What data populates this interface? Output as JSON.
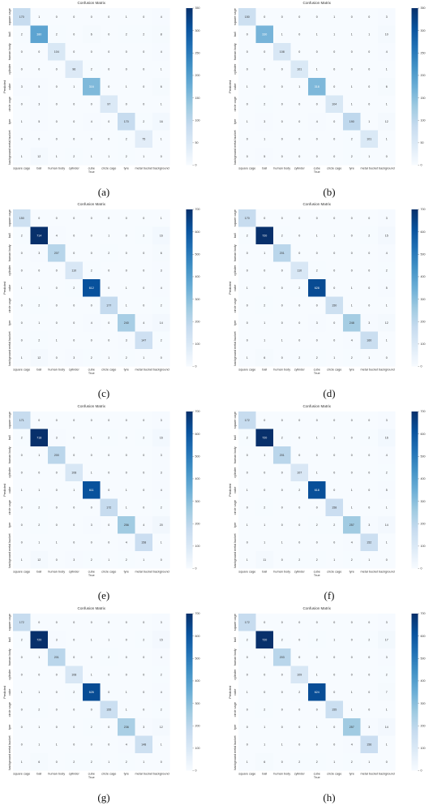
{
  "figure": {
    "class_labels": [
      "square cage",
      "ball",
      "human body",
      "cylinder",
      "cube",
      "circle cage",
      "tyre",
      "metal bucket",
      "background"
    ],
    "xlabel": "True",
    "ylabel": "Predicted",
    "colormap": [
      "#f7fbff",
      "#deebf7",
      "#c6dbef",
      "#9ecae1",
      "#6baed6",
      "#4292c6",
      "#2171b5",
      "#08519c",
      "#08306b"
    ]
  },
  "chart_data": [
    {
      "panel": "(a)",
      "type": "heatmap",
      "title": "Confusion Matrix",
      "xlabel": "True",
      "ylabel": "Predicted",
      "x": [
        "square cage",
        "ball",
        "human body",
        "cylinder",
        "cube",
        "circle cage",
        "tyre",
        "metal bucket",
        "background"
      ],
      "y": [
        "square cage",
        "ball",
        "human body",
        "cylinder",
        "cube",
        "circle cage",
        "tyre",
        "metal bucket",
        "background"
      ],
      "vmin": 0,
      "vmax": 700,
      "colorbar_ticks": [
        0,
        50,
        100,
        150,
        200,
        250,
        300,
        350
      ],
      "z": [
        [
          170,
          1,
          0,
          0,
          0,
          0,
          1,
          0,
          4
        ],
        [
          2,
          380,
          2,
          0,
          6,
          0,
          2,
          2,
          8
        ],
        [
          0,
          0,
          104,
          0,
          0,
          0,
          0,
          0,
          4
        ],
        [
          0,
          0,
          0,
          96,
          2,
          0,
          0,
          0,
          1
        ],
        [
          3,
          5,
          0,
          1,
          316,
          0,
          1,
          0,
          6
        ],
        [
          0,
          3,
          0,
          0,
          0,
          97,
          0,
          0,
          1
        ],
        [
          1,
          5,
          0,
          0,
          4,
          0,
          170,
          2,
          16
        ],
        [
          0,
          0,
          0,
          0,
          0,
          0,
          2,
          75,
          1
        ],
        [
          1,
          12,
          1,
          2,
          1,
          1,
          2,
          1,
          0
        ]
      ]
    },
    {
      "panel": "(b)",
      "type": "heatmap",
      "title": "Confusion Matrix",
      "xlabel": "True",
      "ylabel": "Predicted",
      "x": [
        "square cage",
        "ball",
        "human body",
        "cylinder",
        "cube",
        "circle cage",
        "tyre",
        "metal bucket",
        "background"
      ],
      "y": [
        "square cage",
        "ball",
        "human body",
        "cylinder",
        "cube",
        "circle cage",
        "tyre",
        "metal bucket",
        "background"
      ],
      "vmin": 0,
      "vmax": 700,
      "colorbar_ticks": [
        0,
        50,
        100,
        150,
        200,
        250,
        300,
        350
      ],
      "z": [
        [
          150,
          0,
          0,
          0,
          0,
          1,
          0,
          0,
          3
        ],
        [
          0,
          330,
          1,
          0,
          1,
          1,
          1,
          1,
          10
        ],
        [
          0,
          0,
          108,
          0,
          0,
          0,
          0,
          0,
          4
        ],
        [
          0,
          0,
          0,
          101,
          1,
          0,
          0,
          0,
          1
        ],
        [
          1,
          0,
          0,
          1,
          318,
          0,
          1,
          0,
          6
        ],
        [
          0,
          2,
          0,
          0,
          0,
          104,
          1,
          0,
          1
        ],
        [
          1,
          3,
          0,
          0,
          4,
          0,
          190,
          1,
          12
        ],
        [
          0,
          1,
          0,
          0,
          0,
          0,
          2,
          101,
          1
        ],
        [
          0,
          5,
          0,
          0,
          0,
          0,
          2,
          1,
          0
        ]
      ]
    },
    {
      "panel": "(c)",
      "type": "heatmap",
      "title": "Confusion Matrix",
      "xlabel": "True",
      "ylabel": "Predicted",
      "x": [
        "square cage",
        "ball",
        "human body",
        "cylinder",
        "cube",
        "circle cage",
        "tyre",
        "metal bucket",
        "background"
      ],
      "y": [
        "square cage",
        "ball",
        "human body",
        "cylinder",
        "cube",
        "circle cage",
        "tyre",
        "metal bucket",
        "background"
      ],
      "vmin": 0,
      "vmax": 700,
      "colorbar_ticks": [
        0,
        100,
        200,
        300,
        400,
        500,
        600,
        700
      ],
      "z": [
        [
          150,
          0,
          0,
          0,
          0,
          0,
          0,
          0,
          1
        ],
        [
          2,
          714,
          4,
          0,
          0,
          1,
          0,
          2,
          16
        ],
        [
          0,
          3,
          207,
          0,
          0,
          2,
          0,
          0,
          6
        ],
        [
          0,
          0,
          0,
          110,
          2,
          0,
          0,
          0,
          3
        ],
        [
          1,
          1,
          0,
          2,
          612,
          0,
          1,
          0,
          4
        ],
        [
          0,
          2,
          0,
          0,
          0,
          177,
          1,
          0,
          2
        ],
        [
          0,
          1,
          0,
          0,
          4,
          0,
          240,
          4,
          14
        ],
        [
          0,
          2,
          1,
          0,
          0,
          0,
          3,
          147,
          2
        ],
        [
          1,
          12,
          0,
          3,
          2,
          1,
          2,
          1,
          0
        ]
      ]
    },
    {
      "panel": "(d)",
      "type": "heatmap",
      "title": "Confusion Matrix",
      "xlabel": "True",
      "ylabel": "Predicted",
      "x": [
        "square cage",
        "ball",
        "human body",
        "cylinder",
        "cube",
        "circle cage",
        "tyre",
        "metal bucket",
        "background"
      ],
      "y": [
        "square cage",
        "ball",
        "human body",
        "cylinder",
        "cube",
        "circle cage",
        "tyre",
        "metal bucket",
        "background"
      ],
      "vmin": 0,
      "vmax": 700,
      "colorbar_ticks": [
        0,
        100,
        200,
        300,
        400,
        500,
        600,
        700
      ],
      "z": [
        [
          170,
          0,
          0,
          0,
          0,
          0,
          0,
          0,
          3
        ],
        [
          2,
          720,
          2,
          0,
          1,
          1,
          0,
          2,
          15
        ],
        [
          0,
          1,
          201,
          0,
          0,
          0,
          0,
          0,
          4
        ],
        [
          0,
          0,
          0,
          110,
          2,
          0,
          0,
          0,
          2
        ],
        [
          1,
          0,
          0,
          2,
          628,
          0,
          1,
          0,
          5
        ],
        [
          0,
          2,
          0,
          0,
          0,
          150,
          1,
          0,
          1
        ],
        [
          0,
          1,
          0,
          0,
          3,
          0,
          248,
          3,
          12
        ],
        [
          0,
          1,
          1,
          0,
          0,
          0,
          4,
          160,
          1
        ],
        [
          1,
          6,
          0,
          2,
          2,
          1,
          2,
          1,
          0
        ]
      ]
    },
    {
      "panel": "(e)",
      "type": "heatmap",
      "title": "Confusion Matrix",
      "xlabel": "True",
      "ylabel": "Predicted",
      "x": [
        "square cage",
        "ball",
        "human body",
        "cylinder",
        "cube",
        "circle cage",
        "tyre",
        "metal bucket",
        "background"
      ],
      "y": [
        "square cage",
        "ball",
        "human body",
        "cylinder",
        "cube",
        "circle cage",
        "tyre",
        "metal bucket",
        "background"
      ],
      "vmin": 0,
      "vmax": 700,
      "colorbar_ticks": [
        0,
        100,
        200,
        300,
        400,
        500,
        600,
        700
      ],
      "z": [
        [
          171,
          0,
          0,
          0,
          0,
          0,
          0,
          0,
          3
        ],
        [
          2,
          718,
          3,
          0,
          1,
          2,
          0,
          2,
          16
        ],
        [
          0,
          1,
          200,
          0,
          0,
          0,
          0,
          0,
          3
        ],
        [
          0,
          0,
          0,
          108,
          1,
          0,
          0,
          0,
          3
        ],
        [
          1,
          1,
          0,
          1,
          611,
          0,
          1,
          0,
          4
        ],
        [
          0,
          2,
          0,
          0,
          0,
          172,
          1,
          0,
          2
        ],
        [
          0,
          2,
          0,
          0,
          3,
          0,
          256,
          4,
          20
        ],
        [
          0,
          1,
          1,
          0,
          0,
          0,
          4,
          158,
          1
        ],
        [
          1,
          12,
          0,
          3,
          2,
          1,
          2,
          1,
          0
        ]
      ]
    },
    {
      "panel": "(f)",
      "type": "heatmap",
      "title": "Confusion Matrix",
      "xlabel": "True",
      "ylabel": "Predicted",
      "x": [
        "square cage",
        "ball",
        "human body",
        "cylinder",
        "cube",
        "circle cage",
        "tyre",
        "metal bucket",
        "background"
      ],
      "y": [
        "square cage",
        "ball",
        "human body",
        "cylinder",
        "cube",
        "circle cage",
        "tyre",
        "metal bucket",
        "background"
      ],
      "vmin": 0,
      "vmax": 700,
      "colorbar_ticks": [
        0,
        100,
        200,
        300,
        400,
        500,
        600,
        700
      ],
      "z": [
        [
          172,
          0,
          0,
          0,
          0,
          0,
          0,
          0,
          3
        ],
        [
          2,
          720,
          2,
          0,
          1,
          1,
          0,
          2,
          16
        ],
        [
          0,
          1,
          201,
          0,
          0,
          0,
          0,
          0,
          4
        ],
        [
          0,
          0,
          0,
          107,
          1,
          0,
          0,
          0,
          2
        ],
        [
          1,
          0,
          0,
          2,
          618,
          0,
          1,
          0,
          5
        ],
        [
          0,
          2,
          0,
          0,
          0,
          158,
          1,
          0,
          1
        ],
        [
          1,
          1,
          0,
          0,
          2,
          2,
          257,
          3,
          14
        ],
        [
          0,
          1,
          1,
          0,
          0,
          0,
          4,
          152,
          1
        ],
        [
          1,
          11,
          0,
          2,
          2,
          1,
          2,
          1,
          0
        ]
      ]
    },
    {
      "panel": "(g)",
      "type": "heatmap",
      "title": "Confusion Matrix",
      "xlabel": "True",
      "ylabel": "Predicted",
      "x": [
        "square cage",
        "ball",
        "human body",
        "cylinder",
        "cube",
        "circle cage",
        "tyre",
        "metal bucket",
        "background"
      ],
      "y": [
        "square cage",
        "ball",
        "human body",
        "cylinder",
        "cube",
        "circle cage",
        "tyre",
        "metal bucket",
        "background"
      ],
      "vmin": 0,
      "vmax": 700,
      "colorbar_ticks": [
        0,
        100,
        200,
        300,
        400,
        500,
        600,
        700
      ],
      "z": [
        [
          172,
          0,
          0,
          0,
          0,
          0,
          0,
          0,
          3
        ],
        [
          2,
          720,
          3,
          0,
          1,
          1,
          0,
          2,
          15
        ],
        [
          0,
          1,
          201,
          0,
          0,
          2,
          0,
          0,
          4
        ],
        [
          0,
          0,
          0,
          108,
          1,
          0,
          0,
          0,
          2
        ],
        [
          1,
          1,
          0,
          2,
          626,
          0,
          1,
          0,
          4
        ],
        [
          0,
          2,
          0,
          0,
          0,
          155,
          1,
          0,
          2
        ],
        [
          0,
          1,
          0,
          0,
          2,
          0,
          236,
          3,
          12
        ],
        [
          0,
          1,
          1,
          0,
          0,
          0,
          4,
          148,
          1
        ],
        [
          1,
          6,
          0,
          2,
          2,
          1,
          2,
          1,
          0
        ]
      ]
    },
    {
      "panel": "(h)",
      "type": "heatmap",
      "title": "Confusion Matrix",
      "xlabel": "True",
      "ylabel": "Predicted",
      "x": [
        "square cage",
        "ball",
        "human body",
        "cylinder",
        "cube",
        "circle cage",
        "tyre",
        "metal bucket",
        "background"
      ],
      "y": [
        "square cage",
        "ball",
        "human body",
        "cylinder",
        "cube",
        "circle cage",
        "tyre",
        "metal bucket",
        "background"
      ],
      "vmin": 0,
      "vmax": 700,
      "colorbar_ticks": [
        0,
        100,
        200,
        300,
        400,
        500,
        600,
        700
      ],
      "z": [
        [
          172,
          0,
          0,
          0,
          0,
          0,
          0,
          0,
          3
        ],
        [
          2,
          720,
          2,
          0,
          2,
          1,
          0,
          2,
          17
        ],
        [
          0,
          1,
          203,
          0,
          0,
          0,
          0,
          0,
          3
        ],
        [
          0,
          0,
          0,
          109,
          1,
          0,
          0,
          0,
          2
        ],
        [
          1,
          0,
          0,
          2,
          624,
          0,
          1,
          0,
          7
        ],
        [
          0,
          2,
          0,
          0,
          0,
          155,
          1,
          0,
          1
        ],
        [
          0,
          1,
          0,
          0,
          1,
          0,
          257,
          3,
          14
        ],
        [
          0,
          1,
          1,
          0,
          0,
          0,
          4,
          156,
          1
        ],
        [
          1,
          6,
          0,
          2,
          2,
          1,
          2,
          1,
          0
        ]
      ]
    }
  ]
}
